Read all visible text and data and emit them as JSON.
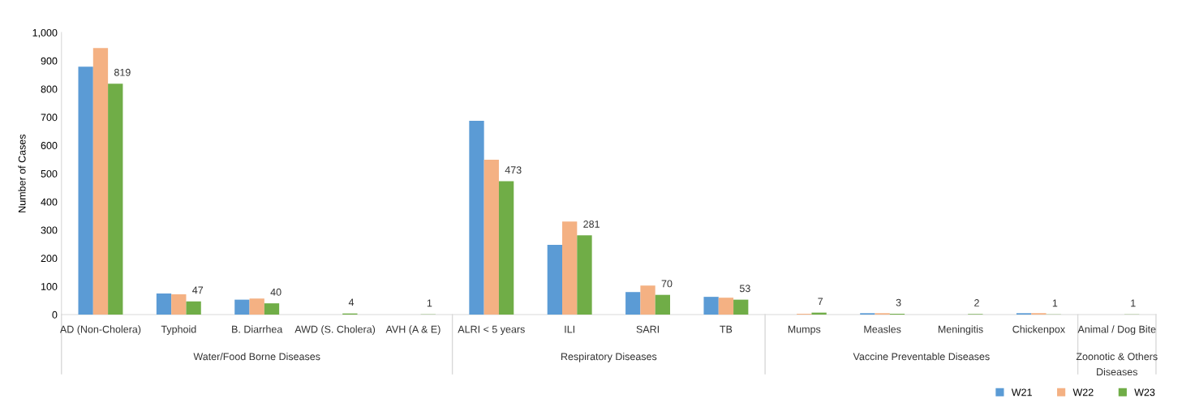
{
  "chart_data": {
    "type": "bar",
    "ylabel": "Number of Cases",
    "categories": [
      "AD (Non-Cholera)",
      "Typhoid",
      "B. Diarrhea",
      "AWD (S. Cholera)",
      "AVH (A & E)",
      "ALRI < 5 years",
      "ILI",
      "SARI",
      "TB",
      "Mumps",
      "Measles",
      "Meningitis",
      "Chickenpox",
      "Animal / Dog Bite"
    ],
    "series": [
      {
        "name": "W21",
        "color": "#5b9bd5",
        "values": [
          879,
          75,
          53,
          0,
          0,
          687,
          247,
          80,
          63,
          0,
          5,
          0,
          5,
          0
        ]
      },
      {
        "name": "W22",
        "color": "#f4b183",
        "values": [
          945,
          72,
          57,
          0,
          0,
          549,
          330,
          103,
          60,
          3,
          5,
          0,
          5,
          0
        ]
      },
      {
        "name": "W23",
        "color": "#70ad47",
        "values": [
          819,
          47,
          40,
          4,
          1,
          473,
          281,
          70,
          53,
          7,
          3,
          2,
          1,
          1
        ],
        "value_labels": [
          "819",
          "47",
          "40",
          "4",
          "1",
          "473",
          "281",
          "70",
          "53",
          "7",
          "3",
          "2",
          "1",
          "1"
        ]
      }
    ],
    "ylim": [
      0,
      1000
    ],
    "yticks": [
      {
        "value": 0,
        "label": "0"
      },
      {
        "value": 100,
        "label": "100"
      },
      {
        "value": 200,
        "label": "200"
      },
      {
        "value": 300,
        "label": "300"
      },
      {
        "value": 400,
        "label": "400"
      },
      {
        "value": 500,
        "label": "500"
      },
      {
        "value": 600,
        "label": "600"
      },
      {
        "value": 700,
        "label": "700"
      },
      {
        "value": 800,
        "label": "800"
      },
      {
        "value": 900,
        "label": "900"
      },
      {
        "value": 1000,
        "label": "1,000"
      }
    ],
    "grid": false,
    "legend": "bottom right",
    "annotations": [
      "Water/Food Borne Diseases",
      "Respiratory Diseases",
      "Vaccine Preventable Diseases",
      "Zoonotic & Others\nDiseases"
    ]
  }
}
